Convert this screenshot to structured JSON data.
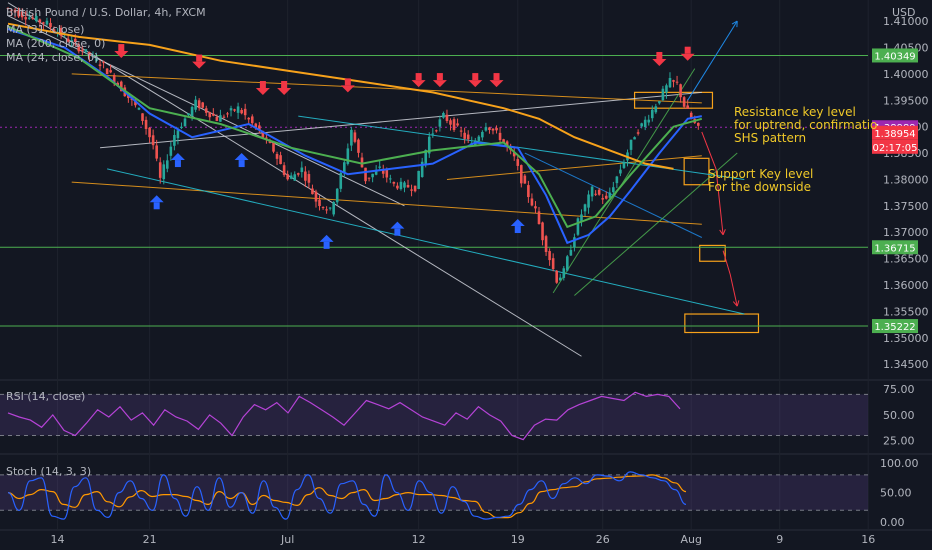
{
  "chart_data": {
    "type": "candlestick",
    "title": "British Pound / U.S. Dollar, 4h, FXCM",
    "currency": "USD",
    "indicators": [
      "MA (31, close)",
      "MA (200, close, 0)",
      "MA (24, close, 0)"
    ],
    "price_ticks": [
      "1.41000",
      "1.40500",
      "1.40000",
      "1.39500",
      "1.39000",
      "1.38500",
      "1.38000",
      "1.37500",
      "1.37000",
      "1.36500",
      "1.36000",
      "1.35500",
      "1.35000",
      "1.34500"
    ],
    "x_ticks": [
      "14",
      "21",
      "Jul",
      "12",
      "19",
      "26",
      "Aug",
      "9",
      "16"
    ],
    "ylim": [
      1.342,
      1.414
    ],
    "price_path": [
      [
        0,
        1.4125
      ],
      [
        6,
        1.4095
      ],
      [
        14,
        1.4015
      ],
      [
        19,
        1.393
      ],
      [
        21,
        1.3865
      ],
      [
        22,
        1.38
      ],
      [
        24,
        1.3885
      ],
      [
        27,
        1.3945
      ],
      [
        30,
        1.3915
      ],
      [
        33,
        1.3935
      ],
      [
        36,
        1.389
      ],
      [
        38,
        1.3855
      ],
      [
        40,
        1.38
      ],
      [
        42,
        1.382
      ],
      [
        44,
        1.376
      ],
      [
        46,
        1.374
      ],
      [
        48,
        1.383
      ],
      [
        49,
        1.3895
      ],
      [
        51,
        1.38
      ],
      [
        53,
        1.382
      ],
      [
        55,
        1.379
      ],
      [
        58,
        1.3785
      ],
      [
        60,
        1.388
      ],
      [
        62,
        1.392
      ],
      [
        64,
        1.3895
      ],
      [
        66,
        1.3865
      ],
      [
        68,
        1.3905
      ],
      [
        70,
        1.388
      ],
      [
        72,
        1.384
      ],
      [
        73,
        1.38
      ],
      [
        75,
        1.374
      ],
      [
        76,
        1.369
      ],
      [
        77,
        1.365
      ],
      [
        78,
        1.361
      ],
      [
        79,
        1.3625
      ],
      [
        81,
        1.372
      ],
      [
        83,
        1.378
      ],
      [
        85,
        1.376
      ],
      [
        87,
        1.382
      ],
      [
        89,
        1.3885
      ],
      [
        91,
        1.392
      ],
      [
        93,
        1.3965
      ],
      [
        94,
        1.3985
      ],
      [
        95,
        1.398
      ],
      [
        96,
        1.394
      ],
      [
        97,
        1.3915
      ],
      [
        98,
        1.3895
      ]
    ],
    "moving_averages": [
      {
        "name": "MA (31, close)",
        "color": "#2962ff",
        "points": [
          [
            0,
            1.4085
          ],
          [
            8,
            1.405
          ],
          [
            14,
            1.3995
          ],
          [
            20,
            1.3925
          ],
          [
            26,
            1.388
          ],
          [
            34,
            1.3905
          ],
          [
            42,
            1.3845
          ],
          [
            48,
            1.381
          ],
          [
            54,
            1.382
          ],
          [
            60,
            1.383
          ],
          [
            66,
            1.387
          ],
          [
            72,
            1.386
          ],
          [
            76,
            1.377
          ],
          [
            79,
            1.368
          ],
          [
            82,
            1.3695
          ],
          [
            85,
            1.373
          ],
          [
            88,
            1.378
          ],
          [
            92,
            1.385
          ],
          [
            96,
            1.3915
          ],
          [
            98,
            1.392
          ]
        ]
      },
      {
        "name": "MA (200, close, 0)",
        "color": "#f7a21b",
        "points": [
          [
            0,
            1.4095
          ],
          [
            10,
            1.407
          ],
          [
            20,
            1.4055
          ],
          [
            30,
            1.4025
          ],
          [
            40,
            1.4005
          ],
          [
            50,
            1.3985
          ],
          [
            60,
            1.3965
          ],
          [
            70,
            1.3935
          ],
          [
            75,
            1.3915
          ],
          [
            80,
            1.388
          ],
          [
            85,
            1.3855
          ],
          [
            90,
            1.383
          ],
          [
            94,
            1.382
          ]
        ]
      },
      {
        "name": "MA (24, close, 0)",
        "color": "#4caf50",
        "points": [
          [
            0,
            1.409
          ],
          [
            10,
            1.403
          ],
          [
            20,
            1.3935
          ],
          [
            30,
            1.3905
          ],
          [
            40,
            1.386
          ],
          [
            50,
            1.383
          ],
          [
            60,
            1.3855
          ],
          [
            70,
            1.387
          ],
          [
            75,
            1.381
          ],
          [
            79,
            1.371
          ],
          [
            83,
            1.373
          ],
          [
            88,
            1.381
          ],
          [
            94,
            1.39
          ],
          [
            98,
            1.3915
          ]
        ]
      }
    ],
    "horizontal_levels": [
      {
        "value": 1.40349,
        "label": "1.40349",
        "color": "#4caf50"
      },
      {
        "value": 1.36715,
        "label": "1.36715",
        "color": "#4caf50"
      },
      {
        "value": 1.35222,
        "label": "1.35222",
        "color": "#4caf50"
      }
    ],
    "current_price": {
      "value": 1.38989,
      "label": "1.38989",
      "color": "#9c27b0"
    },
    "last_price": {
      "value": 1.38954,
      "label": "1.38954",
      "timer": "02:17:05",
      "color": "#f23645"
    },
    "trend_lines": [
      {
        "color": "#d1d4dc",
        "from": [
          0,
          1.4135
        ],
        "to": [
          81,
          1.3465
        ]
      },
      {
        "color": "#d1d4dc",
        "from": [
          0,
          1.411
        ],
        "to": [
          56,
          1.375
        ]
      },
      {
        "color": "#d1d4dc",
        "from": [
          13,
          1.386
        ],
        "to": [
          98,
          1.3965
        ]
      },
      {
        "color": "#f7a21b",
        "from": [
          9,
          1.4
        ],
        "to": [
          98,
          1.3945
        ]
      },
      {
        "color": "#f7a21b",
        "from": [
          9,
          1.3795
        ],
        "to": [
          98,
          1.3715
        ]
      },
      {
        "color": "#f7a21b",
        "from": [
          62,
          1.38
        ],
        "to": [
          98,
          1.3845
        ]
      },
      {
        "color": "#26c6da",
        "from": [
          14,
          1.382
        ],
        "to": [
          104,
          1.3545
        ]
      },
      {
        "color": "#26c6da",
        "from": [
          41,
          1.392
        ],
        "to": [
          104,
          1.38
        ]
      },
      {
        "color": "#1e88e5",
        "from": [
          73,
          1.385
        ],
        "to": [
          98,
          1.369
        ]
      },
      {
        "color": "#4caf50",
        "from": [
          77,
          1.3585
        ],
        "to": [
          97,
          1.401
        ]
      },
      {
        "color": "#4caf50",
        "from": [
          80,
          1.358
        ],
        "to": [
          103,
          1.385
        ]
      }
    ],
    "zones": [
      {
        "color": "#f7a21b",
        "x": [
          88.5,
          99.5
        ],
        "y": [
          1.3935,
          1.3965
        ]
      },
      {
        "color": "#f7a21b",
        "x": [
          95.5,
          99.0
        ],
        "y": [
          1.379,
          1.384
        ]
      },
      {
        "color": "#f7a21b",
        "x": [
          97.7,
          101.3
        ],
        "y": [
          1.3645,
          1.3675
        ]
      },
      {
        "color": "#f7a21b",
        "x": [
          95.6,
          106.0
        ],
        "y": [
          1.351,
          1.3545
        ]
      }
    ],
    "down_arrows": [
      [
        16,
        1.403
      ],
      [
        27,
        1.401
      ],
      [
        36,
        1.396
      ],
      [
        39,
        1.396
      ],
      [
        48,
        1.3965
      ],
      [
        58,
        1.3975
      ],
      [
        61,
        1.3975
      ],
      [
        66,
        1.3975
      ],
      [
        69,
        1.3975
      ],
      [
        92,
        1.4015
      ],
      [
        96,
        1.4025
      ]
    ],
    "up_arrows": [
      [
        21,
        1.377
      ],
      [
        24,
        1.385
      ],
      [
        33,
        1.385
      ],
      [
        45,
        1.3695
      ],
      [
        55,
        1.372
      ],
      [
        72,
        1.3725
      ]
    ],
    "projections": [
      {
        "color": "#1e88e5",
        "points": [
          [
            96,
            1.395
          ],
          [
            103,
            1.41
          ]
        ]
      },
      {
        "color": "#f23645",
        "points": [
          [
            98,
            1.389
          ],
          [
            100,
            1.382
          ],
          [
            101,
            1.3695
          ]
        ]
      },
      {
        "color": "#f23645",
        "points": [
          [
            101,
            1.3665
          ],
          [
            102,
            1.362
          ],
          [
            103,
            1.356
          ]
        ]
      }
    ],
    "annotations": [
      {
        "text": "Resistance key level\nfor uptrend, confirmatio\nSHS pattern",
        "color": "#f0c929"
      },
      {
        "text": "Support Key level\nFor the downside",
        "color": "#f0c929"
      }
    ],
    "rsi": {
      "label": "RSI (14, close)",
      "ticks": [
        "75.00",
        "50.00",
        "25.00"
      ],
      "ylim": [
        14,
        82
      ],
      "band": [
        30,
        70
      ],
      "color": "#b543d6",
      "values": [
        52,
        48,
        45,
        38,
        50,
        35,
        30,
        42,
        55,
        48,
        58,
        45,
        52,
        40,
        55,
        48,
        44,
        36,
        50,
        42,
        30,
        48,
        60,
        55,
        62,
        52,
        68,
        62,
        55,
        48,
        40,
        52,
        64,
        60,
        56,
        62,
        55,
        48,
        44,
        40,
        52,
        46,
        58,
        50,
        44,
        30,
        26,
        40,
        46,
        45,
        55,
        60,
        64,
        68,
        66,
        64,
        72,
        68,
        70,
        68,
        56
      ]
    },
    "stoch": {
      "label": "Stoch (14, 3, 3)",
      "ticks": [
        "100.00",
        "50.00",
        "0.00"
      ],
      "ylim": [
        -10,
        112
      ],
      "band": [
        20,
        80
      ],
      "k_color": "#2962ff",
      "d_color": "#ff9800",
      "values": [
        50,
        20,
        70,
        75,
        10,
        5,
        60,
        75,
        20,
        8,
        50,
        70,
        40,
        20,
        80,
        40,
        10,
        60,
        20,
        75,
        25,
        50,
        15,
        70,
        25,
        5,
        55,
        80,
        40,
        15,
        65,
        70,
        30,
        10,
        80,
        50,
        20,
        70,
        50,
        15,
        60,
        35,
        10,
        5,
        8,
        10,
        30,
        55,
        70,
        40,
        65,
        75,
        65,
        80,
        78,
        70,
        85,
        80,
        75,
        70,
        55,
        30
      ]
    }
  }
}
